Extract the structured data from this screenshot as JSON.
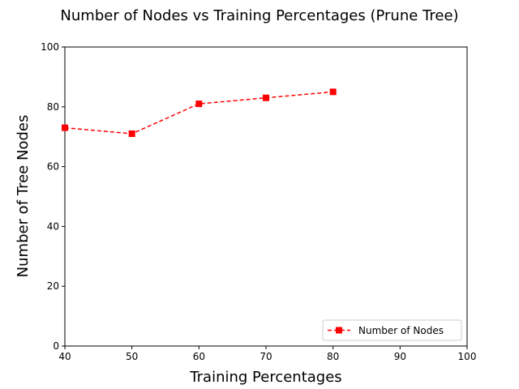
{
  "chart_data": {
    "type": "line",
    "title": "Number of Nodes vs Training Percentages (Prune Tree)",
    "xlabel": "Training Percentages",
    "ylabel": "Number of Tree Nodes",
    "xlim": [
      40,
      100
    ],
    "ylim": [
      0,
      100
    ],
    "x_ticks": [
      40,
      50,
      60,
      70,
      80,
      90,
      100
    ],
    "y_ticks": [
      0,
      20,
      40,
      60,
      80,
      100
    ],
    "grid": false,
    "legend_position": "lower-right",
    "series": [
      {
        "name": "Number of Nodes",
        "x": [
          40,
          50,
          60,
          70,
          80
        ],
        "y": [
          73,
          71,
          81,
          83,
          85
        ],
        "color": "#ff0000",
        "line_style": "dashed",
        "marker": "square"
      }
    ]
  }
}
